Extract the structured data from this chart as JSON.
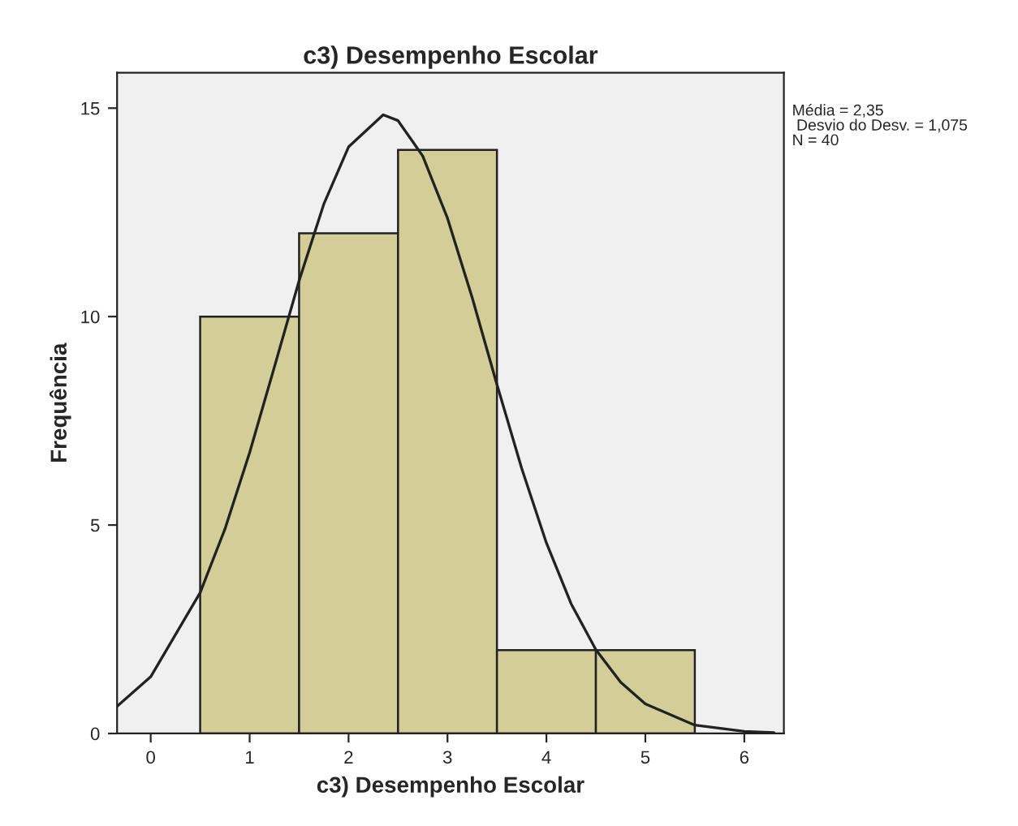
{
  "chart_data": {
    "type": "histogram",
    "title": "c3) Desempenho Escolar",
    "xlabel": "c3) Desempenho Escolar",
    "ylabel": "Frequência",
    "series": [
      {
        "bins": [
          0.5,
          1.5,
          2.5,
          3.5,
          4.5,
          5.5
        ],
        "values": [
          10,
          12,
          14,
          2,
          2
        ],
        "color": "#d3ce97"
      },
      {
        "type": "line",
        "color": "#222222",
        "x": [
          -0.34,
          0,
          0.5,
          0.75,
          1.0,
          1.25,
          1.5,
          1.75,
          2.0,
          2.35,
          2.5,
          2.75,
          3.0,
          3.25,
          3.5,
          3.75,
          4.0,
          4.25,
          4.5,
          4.75,
          5.0,
          5.5,
          6.0,
          6.3
        ],
        "values": [
          0.65,
          1.36,
          3.38,
          4.9,
          6.74,
          8.79,
          10.86,
          12.7,
          14.07,
          14.84,
          14.7,
          13.85,
          12.36,
          10.45,
          8.37,
          6.36,
          4.57,
          3.11,
          2.01,
          1.23,
          0.71,
          0.2,
          0.05,
          0.02
        ]
      }
    ],
    "xlim": [
      -0.34,
      6.4
    ],
    "ylim": [
      0,
      15.85
    ],
    "xticks": [
      0,
      1,
      2,
      3,
      4,
      5,
      6
    ],
    "yticks": [
      0,
      5,
      10,
      15
    ],
    "annotations": [
      "Média = 2,35",
      " Desvio do Desv. = 1,075",
      "N = 40"
    ],
    "grid": false,
    "legend": false
  }
}
